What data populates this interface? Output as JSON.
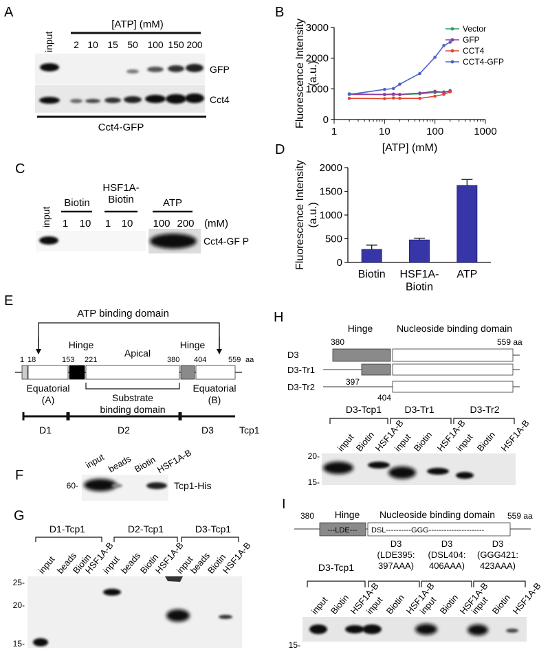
{
  "panels": {
    "A": {
      "letter": "A",
      "input_label": "input",
      "atp_header": "[ATP] (mM)",
      "concentrations": [
        "2",
        "10",
        "15",
        "50",
        "100",
        "150",
        "200"
      ],
      "band_labels": [
        "GFP",
        "Cct4"
      ],
      "footer": "Cct4-GFP"
    },
    "C": {
      "letter": "C",
      "input_label": "input",
      "groups": [
        "Biotin",
        "HSF1A-\nBiotin",
        "ATP"
      ],
      "concs": [
        "1",
        "10",
        "1",
        "10",
        "100",
        "200"
      ],
      "unit": "(mM)",
      "band_label": "Cct4-GF P"
    },
    "E": {
      "letter": "E",
      "atp_domain": "ATP binding domain",
      "hinge_left": "Hinge",
      "apical": "Apical",
      "hinge_right": "Hinge",
      "positions": [
        "1",
        "18",
        "153",
        "221",
        "380",
        "404",
        "559"
      ],
      "aa": "aa",
      "equatorial_a": "Equatorial\n(A)",
      "substrate": "Substrate\nbinding domain",
      "equatorial_b": "Equatorial\n(B)",
      "segments": [
        "D1",
        "D2",
        "D3"
      ],
      "protein": "Tcp1"
    },
    "F": {
      "letter": "F",
      "lanes": [
        "input",
        "beads",
        "Biotin",
        "HSF1A-B"
      ],
      "marker": "60-",
      "band_label": "Tcp1-His"
    },
    "G": {
      "letter": "G",
      "groups": [
        "D1-Tcp1",
        "D2-Tcp1",
        "D3-Tcp1"
      ],
      "lanes": [
        "input",
        "beads",
        "Biotin",
        "HSF1A-B"
      ],
      "markers": [
        "25-",
        "20-",
        "15-"
      ]
    },
    "H": {
      "letter": "H",
      "hinge": "Hinge",
      "nbd": "Nucleoside binding domain",
      "pos_380": "380",
      "pos_559": "559 aa",
      "constructs": [
        "D3",
        "D3-Tr1",
        "D3-Tr2"
      ],
      "pos_397": "397",
      "pos_404": "404",
      "groups": [
        "D3-Tcp1",
        "D3-Tr1",
        "D3-Tr2"
      ],
      "lanes": [
        "input",
        "Biotin",
        "HSF1A-B"
      ],
      "markers": [
        "20-",
        "15-"
      ]
    },
    "I": {
      "letter": "I",
      "pos_380": "380",
      "hinge": "Hinge",
      "nbd": "Nucleoside binding domain",
      "pos_559": "559 aa",
      "motif_hinge": "---LDE---",
      "motif_nbd": "DSL----------GGG----------------------",
      "groups": [
        "D3-Tcp1",
        "D3\n(LDE395:\n397AAA)",
        "D3\n(DSL404:\n406AAA)",
        "D3\n(GGG421:\n423AAA)"
      ],
      "lanes": [
        "input",
        "Biotin",
        "HSF1A-B"
      ],
      "marker": "15-"
    }
  },
  "chart_data": [
    {
      "panel": "B",
      "type": "line",
      "title": "",
      "xlabel": "[ATP] (mM)",
      "ylabel": "Fluorescence Intensity\n(a.u.)",
      "xscale": "log",
      "xlim": [
        1,
        1000
      ],
      "ylim": [
        0,
        3000
      ],
      "xticks": [
        "1",
        "10",
        "100",
        "1000"
      ],
      "yticks": [
        "0",
        "1000",
        "2000",
        "3000"
      ],
      "legend_position": "top-right",
      "grid": false,
      "series": [
        {
          "name": "Vector",
          "color": "#2e9e5e",
          "x": [
            2,
            10,
            15,
            20,
            50,
            100,
            150,
            200
          ],
          "y": [
            840,
            810,
            815,
            810,
            840,
            880,
            900,
            920
          ]
        },
        {
          "name": "GFP",
          "color": "#8e3a9f",
          "x": [
            2,
            10,
            15,
            20,
            50,
            100,
            150,
            200
          ],
          "y": [
            820,
            820,
            830,
            820,
            860,
            920,
            880,
            940
          ]
        },
        {
          "name": "CCT4",
          "color": "#e4452e",
          "x": [
            2,
            10,
            15,
            20,
            50,
            100,
            150,
            200
          ],
          "y": [
            690,
            680,
            700,
            690,
            690,
            760,
            820,
            900
          ]
        },
        {
          "name": "CCT4-GFP",
          "color": "#4a63c8",
          "x": [
            2,
            10,
            15,
            20,
            50,
            100,
            150,
            200
          ],
          "y": [
            820,
            980,
            1010,
            1150,
            1500,
            2030,
            2410,
            2520
          ]
        }
      ]
    },
    {
      "panel": "D",
      "type": "bar",
      "title": "",
      "xlabel": "",
      "ylabel": "Fluorescence Intensity\n(a.u.)",
      "ylim": [
        0,
        2000
      ],
      "yticks": [
        "0",
        "500",
        "1000",
        "1500",
        "2000"
      ],
      "categories": [
        "Biotin",
        "HSF1A-\nBiotin",
        "ATP"
      ],
      "values": [
        275,
        475,
        1625
      ],
      "errors": [
        90,
        35,
        125
      ],
      "bar_color": "#3636a8"
    }
  ]
}
